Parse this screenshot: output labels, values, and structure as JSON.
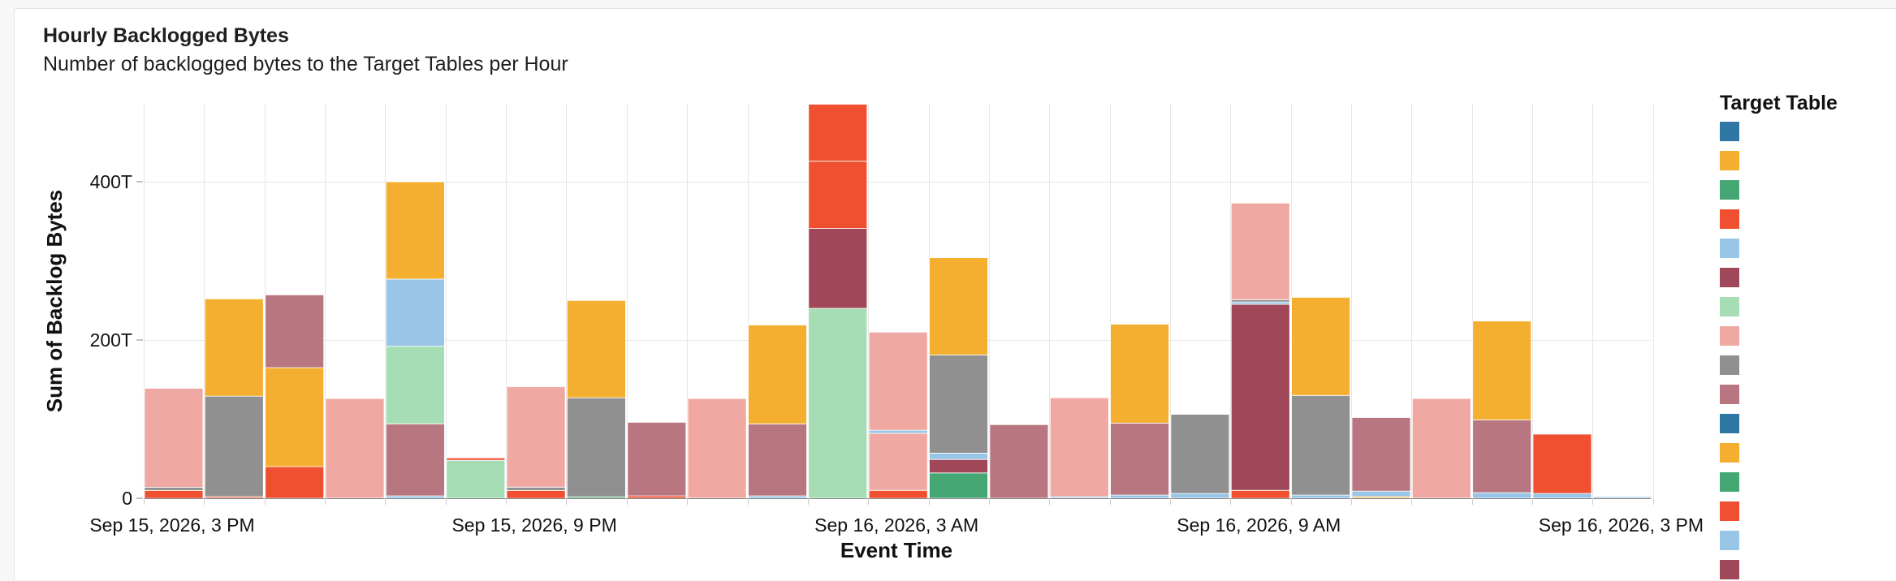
{
  "header": {
    "title": "Hourly Backlogged Bytes",
    "subtitle": "Number of backlogged bytes to the Target Tables per Hour"
  },
  "chart_data": {
    "type": "bar",
    "stacked": true,
    "title": "Hourly Backlogged Bytes",
    "subtitle": "Number of backlogged bytes to the Target Tables per Hour",
    "xlabel": "Event Time",
    "ylabel": "Sum of Backlog Bytes",
    "ylim": [
      0,
      400
    ],
    "y_unit": "T",
    "y_ticks": [
      {
        "value": 0,
        "label": "0"
      },
      {
        "value": 200,
        "label": "200T"
      },
      {
        "value": 400,
        "label": "400T"
      }
    ],
    "x_ticks": [
      {
        "index": 0,
        "label": "Sep 15, 2026, 3 PM"
      },
      {
        "index": 6,
        "label": "Sep 15, 2026, 9 PM"
      },
      {
        "index": 12,
        "label": "Sep 16, 2026, 3 AM"
      },
      {
        "index": 18,
        "label": "Sep 16, 2026, 9 AM"
      },
      {
        "index": 24,
        "label": "Sep 16, 2026, 3 PM"
      }
    ],
    "grid": true,
    "legend": {
      "title": "Target Table",
      "position": "right"
    },
    "palette": [
      "#2e77a5",
      "#f5af30",
      "#45a874",
      "#f05030",
      "#99c6e6",
      "#a0485a",
      "#a6ddb5",
      "#f0a8a2",
      "#909090",
      "#b87780"
    ],
    "legend_swatches": [
      "#2e77a5",
      "#f5af30",
      "#45a874",
      "#f05030",
      "#99c6e6",
      "#a0485a",
      "#a6ddb5",
      "#f0a8a2",
      "#909090",
      "#b87780",
      "#2e77a5",
      "#f5af30",
      "#45a874",
      "#f05030",
      "#99c6e6",
      "#a0485a"
    ],
    "bars": [
      {
        "index": 0,
        "segments": [
          {
            "color": "#f05030",
            "value": 10
          },
          {
            "color": "#909090",
            "value": 4
          },
          {
            "color": "#f0a8a2",
            "value": 125
          }
        ]
      },
      {
        "index": 1,
        "segments": [
          {
            "color": "#f05030",
            "value": 2
          },
          {
            "color": "#909090",
            "value": 127
          },
          {
            "color": "#f5af30",
            "value": 123
          }
        ]
      },
      {
        "index": 2,
        "segments": [
          {
            "color": "#f05030",
            "value": 40
          },
          {
            "color": "#f5af30",
            "value": 125
          },
          {
            "color": "#b87780",
            "value": 92
          }
        ]
      },
      {
        "index": 3,
        "segments": [
          {
            "color": "#f0a8a2",
            "value": 126
          }
        ]
      },
      {
        "index": 4,
        "segments": [
          {
            "color": "#99c6e6",
            "value": 3
          },
          {
            "color": "#b87780",
            "value": 91
          },
          {
            "color": "#a6ddb5",
            "value": 98
          },
          {
            "color": "#99c6e6",
            "value": 85
          },
          {
            "color": "#f5af30",
            "value": 123
          }
        ]
      },
      {
        "index": 5,
        "segments": [
          {
            "color": "#a6ddb5",
            "value": 48
          },
          {
            "color": "#f05030",
            "value": 3
          }
        ]
      },
      {
        "index": 6,
        "segments": [
          {
            "color": "#f05030",
            "value": 10
          },
          {
            "color": "#909090",
            "value": 4
          },
          {
            "color": "#f0a8a2",
            "value": 127
          }
        ]
      },
      {
        "index": 7,
        "segments": [
          {
            "color": "#45a874",
            "value": 2
          },
          {
            "color": "#909090",
            "value": 125
          },
          {
            "color": "#f5af30",
            "value": 123
          }
        ]
      },
      {
        "index": 8,
        "segments": [
          {
            "color": "#f05030",
            "value": 3
          },
          {
            "color": "#b87780",
            "value": 93
          }
        ]
      },
      {
        "index": 9,
        "segments": [
          {
            "color": "#f0a8a2",
            "value": 126
          }
        ]
      },
      {
        "index": 10,
        "segments": [
          {
            "color": "#99c6e6",
            "value": 3
          },
          {
            "color": "#b87780",
            "value": 91
          },
          {
            "color": "#f5af30",
            "value": 125
          }
        ]
      },
      {
        "index": 11,
        "segments": [
          {
            "color": "#a6ddb5",
            "value": 240
          },
          {
            "color": "#a0485a",
            "value": 101
          },
          {
            "color": "#f05030",
            "value": 85
          },
          {
            "color": "#f05030",
            "value": 72
          }
        ]
      },
      {
        "index": 12,
        "segments": [
          {
            "color": "#f05030",
            "value": 10
          },
          {
            "color": "#f0a8a2",
            "value": 72
          },
          {
            "color": "#99c6e6",
            "value": 4
          },
          {
            "color": "#f0a8a2",
            "value": 124
          }
        ]
      },
      {
        "index": 13,
        "segments": [
          {
            "color": "#45a874",
            "value": 32
          },
          {
            "color": "#a0485a",
            "value": 17
          },
          {
            "color": "#99c6e6",
            "value": 8
          },
          {
            "color": "#909090",
            "value": 124
          },
          {
            "color": "#f5af30",
            "value": 123
          }
        ]
      },
      {
        "index": 14,
        "segments": [
          {
            "color": "#b87780",
            "value": 93
          }
        ]
      },
      {
        "index": 15,
        "segments": [
          {
            "color": "#99c6e6",
            "value": 2
          },
          {
            "color": "#f0a8a2",
            "value": 125
          }
        ]
      },
      {
        "index": 16,
        "segments": [
          {
            "color": "#99c6e6",
            "value": 4
          },
          {
            "color": "#b87780",
            "value": 91
          },
          {
            "color": "#f5af30",
            "value": 125
          }
        ]
      },
      {
        "index": 17,
        "segments": [
          {
            "color": "#99c6e6",
            "value": 6
          },
          {
            "color": "#909090",
            "value": 100
          }
        ]
      },
      {
        "index": 18,
        "segments": [
          {
            "color": "#f05030",
            "value": 10
          },
          {
            "color": "#a0485a",
            "value": 235
          },
          {
            "color": "#99c6e6",
            "value": 3
          },
          {
            "color": "#909090",
            "value": 3
          },
          {
            "color": "#f0a8a2",
            "value": 122
          }
        ]
      },
      {
        "index": 19,
        "segments": [
          {
            "color": "#99c6e6",
            "value": 4
          },
          {
            "color": "#909090",
            "value": 126
          },
          {
            "color": "#f5af30",
            "value": 124
          }
        ]
      },
      {
        "index": 20,
        "segments": [
          {
            "color": "#f5af30",
            "value": 2
          },
          {
            "color": "#99c6e6",
            "value": 7
          },
          {
            "color": "#b87780",
            "value": 93
          }
        ]
      },
      {
        "index": 21,
        "segments": [
          {
            "color": "#f0a8a2",
            "value": 126
          }
        ]
      },
      {
        "index": 22,
        "segments": [
          {
            "color": "#99c6e6",
            "value": 7
          },
          {
            "color": "#b87780",
            "value": 92
          },
          {
            "color": "#f5af30",
            "value": 125
          }
        ]
      },
      {
        "index": 23,
        "segments": [
          {
            "color": "#99c6e6",
            "value": 6
          },
          {
            "color": "#f05030",
            "value": 75
          }
        ]
      },
      {
        "index": 24,
        "segments": [
          {
            "color": "#99c6e6",
            "value": 2
          }
        ]
      }
    ]
  }
}
